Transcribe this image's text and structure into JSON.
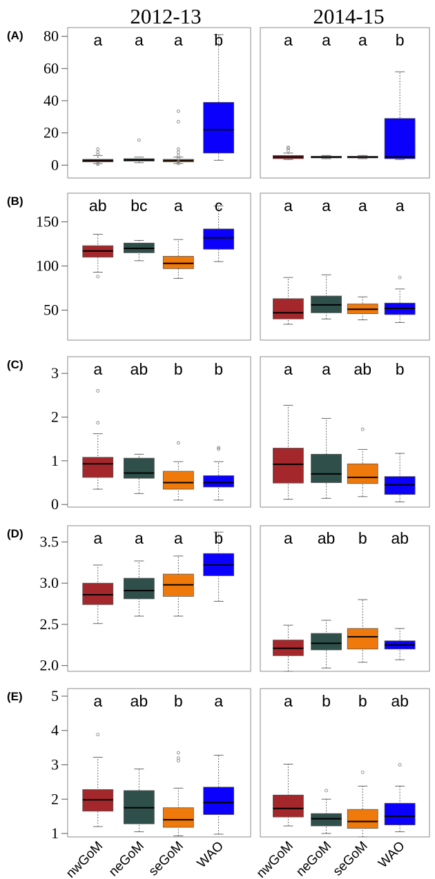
{
  "column_titles": [
    "2012-13",
    "2014-15"
  ],
  "categories": [
    "nwGoM",
    "neGoM",
    "seGoM",
    "WAO"
  ],
  "colors": {
    "nwGoM": "#a4282b",
    "neGoM": "#2f4f4a",
    "seGoM": "#ef7a0b",
    "WAO": "#0b00fc"
  },
  "chart_data": [
    {
      "type": "box",
      "panel": "(A)",
      "period": "2012-13",
      "categories": [
        "nwGoM",
        "neGoM",
        "seGoM",
        "WAO"
      ],
      "ylim": [
        -2,
        82
      ],
      "yticks": [
        0,
        20,
        40,
        60,
        80
      ],
      "ytick_labels": [
        "0",
        "20",
        "40",
        "60",
        "80"
      ],
      "letters": [
        "a",
        "a",
        "a",
        "b"
      ],
      "boxes": [
        {
          "min": 1,
          "q1": 2,
          "median": 2.8,
          "q3": 3.6,
          "max": 6,
          "outliers": [
            0.5,
            1,
            6.5,
            8,
            10
          ]
        },
        {
          "min": 1.5,
          "q1": 2.5,
          "median": 3.2,
          "q3": 4,
          "max": 5,
          "outliers": [
            15.5
          ]
        },
        {
          "min": 1,
          "q1": 2,
          "median": 2.8,
          "q3": 3.6,
          "max": 5,
          "outliers": [
            1,
            2,
            4,
            6,
            8,
            10,
            27,
            33.5
          ]
        },
        {
          "min": 3,
          "q1": 7.5,
          "median": 22,
          "q3": 39,
          "max": 81,
          "outliers": []
        }
      ]
    },
    {
      "type": "box",
      "panel": "",
      "period": "2014-15",
      "categories": [
        "nwGoM",
        "neGoM",
        "seGoM",
        "WAO"
      ],
      "ylim": [
        -2,
        82
      ],
      "yticks": [],
      "ytick_labels": [],
      "letters": [
        "a",
        "a",
        "a",
        "b"
      ],
      "boxes": [
        {
          "min": 3.5,
          "q1": 4,
          "median": 5,
          "q3": 6,
          "max": 7.5,
          "outliers": [
            9,
            10.5,
            11
          ]
        },
        {
          "min": 4,
          "q1": 4.5,
          "median": 5,
          "q3": 5.5,
          "max": 6,
          "outliers": []
        },
        {
          "min": 4,
          "q1": 4.5,
          "median": 5,
          "q3": 5.5,
          "max": 6,
          "outliers": []
        },
        {
          "min": 3.5,
          "q1": 4,
          "median": 5,
          "q3": 29,
          "max": 58,
          "outliers": []
        }
      ]
    },
    {
      "type": "box",
      "panel": "(B)",
      "period": "2012-13",
      "categories": [
        "nwGoM",
        "neGoM",
        "seGoM",
        "WAO"
      ],
      "ylim": [
        16,
        170
      ],
      "yticks": [
        50,
        100,
        150
      ],
      "ytick_labels": [
        "50",
        "100",
        "150"
      ],
      "letters": [
        "ab",
        "bc",
        "a",
        "c"
      ],
      "boxes": [
        {
          "min": 93,
          "q1": 110,
          "median": 117,
          "q3": 123,
          "max": 136,
          "outliers": [
            88
          ]
        },
        {
          "min": 106,
          "q1": 115,
          "median": 120,
          "q3": 126,
          "max": 129,
          "outliers": []
        },
        {
          "min": 86,
          "q1": 97,
          "median": 103,
          "q3": 111,
          "max": 130,
          "outliers": []
        },
        {
          "min": 105,
          "q1": 119,
          "median": 132,
          "q3": 142,
          "max": 168,
          "outliers": []
        }
      ]
    },
    {
      "type": "box",
      "panel": "",
      "period": "2014-15",
      "categories": [
        "nwGoM",
        "neGoM",
        "seGoM",
        "WAO"
      ],
      "ylim": [
        16,
        170
      ],
      "yticks": [],
      "ytick_labels": [],
      "letters": [
        "a",
        "a",
        "a",
        "a"
      ],
      "boxes": [
        {
          "min": 34,
          "q1": 40,
          "median": 47,
          "q3": 63,
          "max": 87,
          "outliers": []
        },
        {
          "min": 40,
          "q1": 47,
          "median": 56,
          "q3": 66,
          "max": 90,
          "outliers": []
        },
        {
          "min": 39,
          "q1": 46,
          "median": 51,
          "q3": 57,
          "max": 65,
          "outliers": []
        },
        {
          "min": 36,
          "q1": 45,
          "median": 52,
          "q3": 58,
          "max": 74,
          "outliers": [
            87
          ]
        }
      ]
    },
    {
      "type": "box",
      "panel": "(C)",
      "period": "2012-13",
      "categories": [
        "nwGoM",
        "neGoM",
        "seGoM",
        "WAO"
      ],
      "ylim": [
        -0.06,
        3.05
      ],
      "yticks": [
        0,
        1,
        2,
        3
      ],
      "ytick_labels": [
        "0",
        "1",
        "2",
        "3"
      ],
      "letters": [
        "a",
        "ab",
        "b",
        "b"
      ],
      "boxes": [
        {
          "min": 0.35,
          "q1": 0.62,
          "median": 0.93,
          "q3": 1.08,
          "max": 1.62,
          "outliers": [
            1.87,
            2.6
          ]
        },
        {
          "min": 0.25,
          "q1": 0.6,
          "median": 0.72,
          "q3": 1.06,
          "max": 1.15,
          "outliers": []
        },
        {
          "min": 0.1,
          "q1": 0.35,
          "median": 0.5,
          "q3": 0.76,
          "max": 0.98,
          "outliers": [
            1.41
          ]
        },
        {
          "min": 0.1,
          "q1": 0.4,
          "median": 0.5,
          "q3": 0.66,
          "max": 0.98,
          "outliers": [
            1.27,
            1.3
          ]
        }
      ]
    },
    {
      "type": "box",
      "panel": "",
      "period": "2014-15",
      "categories": [
        "nwGoM",
        "neGoM",
        "seGoM",
        "WAO"
      ],
      "ylim": [
        -0.06,
        3.05
      ],
      "yticks": [],
      "ytick_labels": [],
      "letters": [
        "a",
        "a",
        "ab",
        "b"
      ],
      "boxes": [
        {
          "min": 0.12,
          "q1": 0.49,
          "median": 0.92,
          "q3": 1.29,
          "max": 2.27,
          "outliers": []
        },
        {
          "min": 0.14,
          "q1": 0.5,
          "median": 0.7,
          "q3": 1.15,
          "max": 1.97,
          "outliers": []
        },
        {
          "min": 0.18,
          "q1": 0.48,
          "median": 0.62,
          "q3": 0.93,
          "max": 1.26,
          "outliers": [
            1.72
          ]
        },
        {
          "min": 0.06,
          "q1": 0.23,
          "median": 0.45,
          "q3": 0.64,
          "max": 1.17,
          "outliers": []
        }
      ]
    },
    {
      "type": "box",
      "panel": "(D)",
      "period": "2012-13",
      "categories": [
        "nwGoM",
        "neGoM",
        "seGoM",
        "WAO"
      ],
      "ylim": [
        1.93,
        3.63
      ],
      "yticks": [
        2.0,
        2.5,
        3.0,
        3.5
      ],
      "ytick_labels": [
        "2.0",
        "2.5",
        "3.0",
        "3.5"
      ],
      "letters": [
        "a",
        "a",
        "a",
        "b"
      ],
      "boxes": [
        {
          "min": 2.51,
          "q1": 2.74,
          "median": 2.86,
          "q3": 3.0,
          "max": 3.22,
          "outliers": []
        },
        {
          "min": 2.6,
          "q1": 2.81,
          "median": 2.91,
          "q3": 3.06,
          "max": 3.27,
          "outliers": []
        },
        {
          "min": 2.6,
          "q1": 2.84,
          "median": 2.98,
          "q3": 3.11,
          "max": 3.33,
          "outliers": []
        },
        {
          "min": 2.78,
          "q1": 3.09,
          "median": 3.22,
          "q3": 3.36,
          "max": 3.62,
          "outliers": []
        }
      ]
    },
    {
      "type": "box",
      "panel": "",
      "period": "2014-15",
      "categories": [
        "nwGoM",
        "neGoM",
        "seGoM",
        "WAO"
      ],
      "ylim": [
        1.93,
        3.63
      ],
      "yticks": [],
      "ytick_labels": [],
      "letters": [
        "a",
        "ab",
        "b",
        "ab"
      ],
      "boxes": [
        {
          "min": 1.93,
          "q1": 2.12,
          "median": 2.21,
          "q3": 2.31,
          "max": 2.49,
          "outliers": []
        },
        {
          "min": 1.97,
          "q1": 2.19,
          "median": 2.27,
          "q3": 2.39,
          "max": 2.55,
          "outliers": []
        },
        {
          "min": 2.04,
          "q1": 2.2,
          "median": 2.35,
          "q3": 2.45,
          "max": 2.8,
          "outliers": []
        },
        {
          "min": 2.07,
          "q1": 2.2,
          "median": 2.25,
          "q3": 2.3,
          "max": 2.45,
          "outliers": []
        }
      ]
    },
    {
      "type": "box",
      "panel": "(E)",
      "period": "2012-13",
      "categories": [
        "nwGoM",
        "neGoM",
        "seGoM",
        "WAO"
      ],
      "ylim": [
        0.9,
        5.08
      ],
      "yticks": [
        1,
        2,
        3,
        4,
        5
      ],
      "ytick_labels": [
        "1",
        "2",
        "3",
        "4",
        "5"
      ],
      "letters": [
        "a",
        "ab",
        "b",
        "a"
      ],
      "boxes": [
        {
          "min": 1.2,
          "q1": 1.65,
          "median": 1.98,
          "q3": 2.28,
          "max": 3.22,
          "outliers": [
            3.88
          ]
        },
        {
          "min": 1.05,
          "q1": 1.28,
          "median": 1.75,
          "q3": 2.25,
          "max": 2.88,
          "outliers": []
        },
        {
          "min": 0.93,
          "q1": 1.18,
          "median": 1.4,
          "q3": 1.75,
          "max": 2.32,
          "outliers": [
            3.12,
            3.2,
            3.35
          ]
        },
        {
          "min": 0.98,
          "q1": 1.55,
          "median": 1.9,
          "q3": 2.35,
          "max": 3.28,
          "outliers": []
        }
      ]
    },
    {
      "type": "box",
      "panel": "",
      "period": "2014-15",
      "categories": [
        "nwGoM",
        "neGoM",
        "seGoM",
        "WAO"
      ],
      "ylim": [
        0.9,
        5.08
      ],
      "yticks": [],
      "ytick_labels": [],
      "letters": [
        "a",
        "b",
        "b",
        "ab"
      ],
      "boxes": [
        {
          "min": 1.22,
          "q1": 1.48,
          "median": 1.73,
          "q3": 2.12,
          "max": 3.02,
          "outliers": []
        },
        {
          "min": 1.0,
          "q1": 1.22,
          "median": 1.43,
          "q3": 1.58,
          "max": 2.0,
          "outliers": [
            2.25
          ]
        },
        {
          "min": 0.9,
          "q1": 1.15,
          "median": 1.35,
          "q3": 1.7,
          "max": 2.38,
          "outliers": [
            2.78
          ]
        },
        {
          "min": 1.05,
          "q1": 1.25,
          "median": 1.5,
          "q3": 1.88,
          "max": 2.38,
          "outliers": [
            3.0
          ]
        }
      ]
    }
  ]
}
